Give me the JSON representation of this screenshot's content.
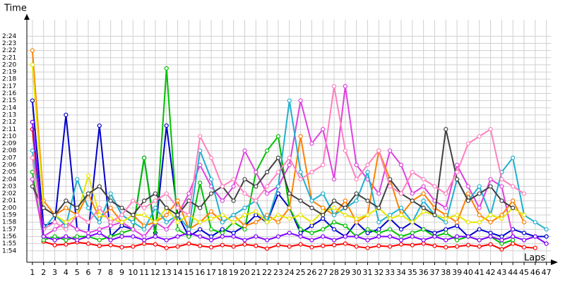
{
  "chart_data": {
    "type": "line",
    "y_label": "Time",
    "x_label": "Laps",
    "x": [
      1,
      2,
      3,
      4,
      5,
      6,
      7,
      8,
      9,
      10,
      11,
      12,
      13,
      14,
      15,
      16,
      17,
      18,
      19,
      20,
      21,
      22,
      23,
      24,
      25,
      26,
      27,
      28,
      29,
      30,
      31,
      32,
      33,
      34,
      35,
      36,
      37,
      38,
      39,
      40,
      41,
      42,
      43,
      44,
      45,
      46,
      47
    ],
    "xlim": [
      0.5,
      47.4
    ],
    "xticks": [
      1,
      2,
      3,
      4,
      5,
      6,
      7,
      8,
      9,
      10,
      11,
      12,
      13,
      14,
      15,
      16,
      17,
      18,
      19,
      20,
      21,
      22,
      23,
      24,
      25,
      26,
      27,
      28,
      29,
      30,
      31,
      32,
      33,
      34,
      35,
      36,
      37,
      38,
      39,
      40,
      41,
      42,
      43,
      44,
      45,
      46,
      47
    ],
    "ylim": [
      112.4,
      146.3
    ],
    "yticks": [
      {
        "value": 114,
        "label": "1:54"
      },
      {
        "value": 115,
        "label": "1:55"
      },
      {
        "value": 116,
        "label": "1:56"
      },
      {
        "value": 117,
        "label": "1:57"
      },
      {
        "value": 118,
        "label": "1:58"
      },
      {
        "value": 119,
        "label": "1:59"
      },
      {
        "value": 120,
        "label": "2:00"
      },
      {
        "value": 121,
        "label": "2:01"
      },
      {
        "value": 122,
        "label": "2:02"
      },
      {
        "value": 123,
        "label": "2:03"
      },
      {
        "value": 124,
        "label": "2:04"
      },
      {
        "value": 125,
        "label": "2:05"
      },
      {
        "value": 126,
        "label": "2:06"
      },
      {
        "value": 127,
        "label": "2:07"
      },
      {
        "value": 128,
        "label": "2:08"
      },
      {
        "value": 129,
        "label": "2:09"
      },
      {
        "value": 130,
        "label": "2:10"
      },
      {
        "value": 131,
        "label": "2:11"
      },
      {
        "value": 132,
        "label": "2:12"
      },
      {
        "value": 133,
        "label": "2:13"
      },
      {
        "value": 134,
        "label": "2:14"
      },
      {
        "value": 135,
        "label": "2:15"
      },
      {
        "value": 136,
        "label": "2:16"
      },
      {
        "value": 137,
        "label": "2:17"
      },
      {
        "value": 138,
        "label": "2:18"
      },
      {
        "value": 139,
        "label": "2:19"
      },
      {
        "value": 140,
        "label": "2:20"
      },
      {
        "value": 141,
        "label": "2:21"
      },
      {
        "value": 142,
        "label": "2:22"
      },
      {
        "value": 143,
        "label": "2:23"
      },
      {
        "value": 144,
        "label": "2:24"
      }
    ],
    "grid": true,
    "series": [
      {
        "color": "#ff0000",
        "values": [
          131,
          115.3,
          114.8,
          114.9,
          115.2,
          115,
          114.7,
          114.8,
          114.5,
          114.6,
          115,
          114.9,
          114.4,
          114.6,
          115,
          114.7,
          114.5,
          114.8,
          114.6,
          114.9,
          114.7,
          114.3,
          114.8,
          114.6,
          114.9,
          114.5,
          114.7,
          114.8,
          115,
          114.6,
          114.4,
          114.7,
          114.6,
          114.9,
          114.8,
          115,
          114.7,
          114.5,
          114.6,
          114.8,
          114.6,
          114.9,
          114.2,
          115,
          114.5,
          114.4,
          null
        ]
      },
      {
        "color": "#0000cc",
        "values": [
          135,
          117.5,
          118,
          133,
          117,
          116.5,
          131.5,
          116,
          117.5,
          117,
          127,
          116.5,
          131.5,
          119,
          116,
          117,
          116,
          117,
          116.5,
          117.5,
          119,
          118,
          122,
          120,
          116.5,
          117.5,
          118.5,
          117,
          116,
          118,
          116.5,
          117,
          118.5,
          117,
          118,
          117,
          116.5,
          117,
          117.5,
          116,
          117,
          116.5,
          116,
          117,
          116.5,
          116,
          116
        ]
      },
      {
        "color": "#00c000",
        "values": [
          125,
          115.5,
          116,
          115.5,
          116,
          116,
          115.5,
          116,
          116.5,
          117,
          127,
          116,
          139.5,
          117,
          116,
          123.5,
          117,
          116.5,
          118,
          117,
          125,
          128,
          130,
          120,
          117,
          116.5,
          117,
          118,
          117.5,
          116,
          117,
          116.5,
          117,
          116,
          116.5,
          117,
          116,
          116.5,
          115.5,
          116,
          115.5,
          116,
          115,
          115.5,
          null,
          null,
          null
        ]
      },
      {
        "color": "#e040e0",
        "values": [
          124,
          116,
          117,
          118,
          117,
          116.5,
          117,
          117.5,
          118,
          117,
          116,
          118,
          117,
          119,
          122,
          126,
          123,
          121,
          123,
          128,
          125,
          122,
          123,
          126,
          135,
          129,
          131,
          124,
          137,
          126,
          124,
          122,
          128,
          126,
          122,
          123,
          121,
          120,
          126,
          123,
          120,
          124,
          123,
          116,
          null,
          null,
          null
        ]
      },
      {
        "color": "#ff8000",
        "values": [
          142,
          121,
          119,
          120,
          119,
          122,
          118.5,
          120,
          118,
          119,
          117.5,
          118,
          119,
          121,
          117,
          118,
          119.5,
          118,
          119,
          117.5,
          118,
          119,
          118,
          120,
          130,
          121,
          120,
          119,
          121,
          118,
          119,
          128,
          124,
          119,
          121,
          122,
          120,
          119,
          118,
          122,
          119,
          118,
          119,
          121,
          118,
          null,
          null
        ]
      },
      {
        "color": "#20b0d0",
        "values": [
          128,
          117,
          119,
          117.5,
          124,
          120,
          118,
          122,
          119,
          118,
          117,
          120,
          118,
          119,
          117,
          128,
          124,
          118,
          119,
          120,
          121,
          118,
          123,
          135,
          125,
          121,
          122,
          119,
          120,
          121,
          125,
          118,
          119,
          120,
          118,
          121,
          119,
          118,
          124,
          121,
          123,
          119,
          125,
          127,
          119,
          118,
          117
        ]
      },
      {
        "color": "#e6e600",
        "values": [
          140,
          120,
          119,
          118,
          119,
          124.5,
          119,
          118.5,
          118,
          119,
          119,
          118,
          120,
          118,
          119,
          118,
          118.5,
          119,
          118,
          119,
          119.5,
          118,
          119,
          118.5,
          119,
          118,
          119.5,
          120,
          119,
          118.5,
          119,
          120,
          118.5,
          119,
          118,
          119.5,
          119,
          118.5,
          119,
          118,
          118,
          119,
          118.5,
          120,
          119,
          null,
          null
        ]
      },
      {
        "color": "#404040",
        "values": [
          123,
          120,
          119,
          121,
          120,
          122,
          123,
          121,
          120,
          119,
          121,
          122,
          120,
          119,
          121,
          120,
          122,
          123,
          121,
          124,
          123,
          125,
          127,
          122,
          121,
          120,
          119,
          121,
          120,
          122,
          121,
          120,
          124,
          122,
          121,
          120,
          119,
          131,
          124,
          121,
          122,
          123,
          121,
          120,
          null,
          null,
          null
        ]
      },
      {
        "color": "#ff80c0",
        "values": [
          127,
          117,
          118,
          117,
          119,
          118,
          120,
          118,
          119,
          121,
          120,
          121,
          122,
          120,
          119,
          130,
          127,
          123,
          124,
          122,
          121,
          123,
          125,
          127,
          124,
          125,
          126,
          137,
          128,
          124,
          126,
          128,
          123,
          122,
          125,
          124,
          123,
          122,
          125,
          129,
          130,
          131,
          124,
          123,
          122,
          null,
          null
        ]
      },
      {
        "color": "#8000ff",
        "values": [
          132,
          116,
          115.5,
          116,
          115.5,
          116,
          116.5,
          115.5,
          116,
          116,
          115.5,
          116,
          115.5,
          116,
          116.5,
          116,
          115.5,
          116,
          116,
          115.5,
          116,
          115.5,
          116,
          116.5,
          116,
          115.5,
          116,
          115.5,
          116,
          116,
          115.5,
          116,
          116,
          115.5,
          116,
          115.5,
          116,
          115.5,
          116,
          116,
          115.5,
          116,
          115.5,
          116,
          115.5,
          116,
          115
        ]
      }
    ]
  }
}
